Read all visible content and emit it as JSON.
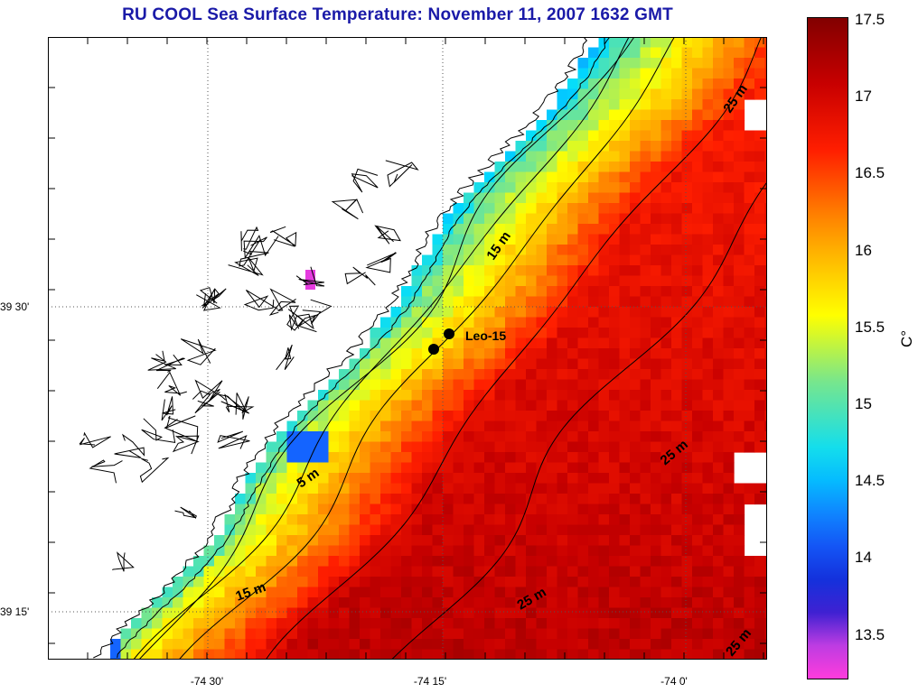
{
  "figure": {
    "title": "RU COOL  Sea Surface Temperature:  November 11, 2007 1632 GMT"
  },
  "axes": {
    "lat_labels": [
      "39 30'",
      "39 15'"
    ],
    "lon_labels": [
      "-74 30'",
      "-74 15'",
      "-74 0'"
    ]
  },
  "colorbar": {
    "ticks": [
      "17.5",
      "17",
      "16.5",
      "16",
      "15.5",
      "15",
      "14.5",
      "14",
      "13.5"
    ],
    "unit": "C°",
    "range": [
      13.2,
      17.5
    ]
  },
  "stations": [
    {
      "name": "Leo-15",
      "label": "Leo-15"
    }
  ],
  "contour_labels": [
    "5 m",
    "15 m",
    "15 m",
    "25 m",
    "25 m",
    "25 m",
    "25 m"
  ],
  "colors": {
    "land": "#ffffff",
    "title": "#1a1aa8"
  }
}
